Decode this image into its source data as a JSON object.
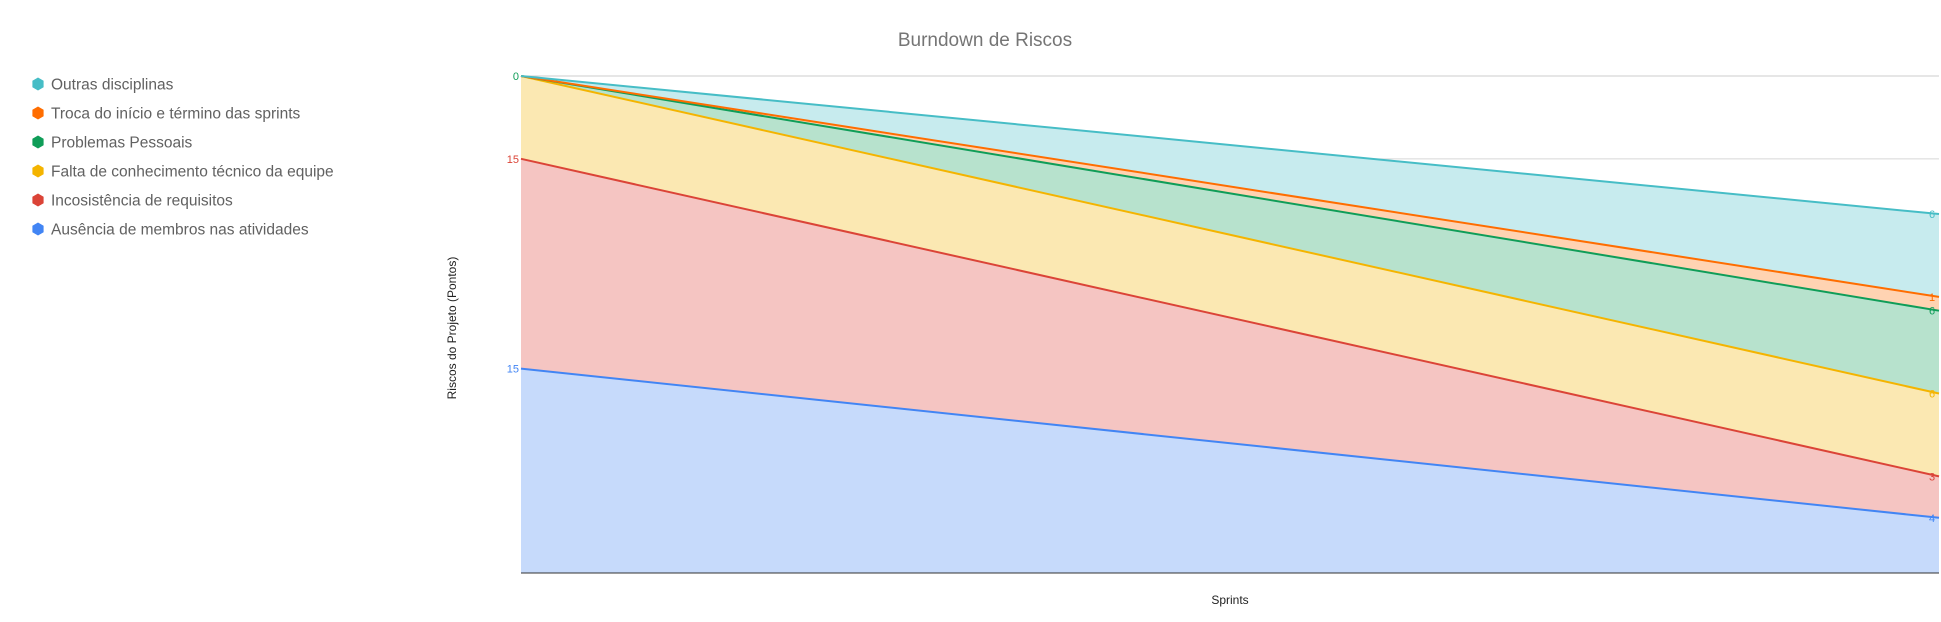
{
  "chart_data": {
    "type": "area",
    "stacked": true,
    "title": "Burndown de Riscos",
    "xlabel": "Sprints",
    "ylabel": "Riscos do Projeto (Pontos)",
    "x": [
      "",
      ""
    ],
    "ylim": [
      0,
      90
    ],
    "grid": true,
    "legend": "left",
    "series": [
      {
        "name": "Ausência de membros nas atividades",
        "color": "#4285f4",
        "fill": "#c6dafb",
        "values": [
          37,
          10
        ],
        "labels": [
          "15",
          "4"
        ]
      },
      {
        "name": "Incosistência de requisitos",
        "color": "#db4437",
        "fill": "#f5c5c2",
        "values": [
          38,
          7.5
        ],
        "labels": [
          "15",
          "3"
        ]
      },
      {
        "name": "Falta de conhecimento técnico da equipe",
        "color": "#f4b400",
        "fill": "#fbe8b2",
        "values": [
          15,
          15
        ],
        "labels": [
          "",
          "6"
        ]
      },
      {
        "name": "Problemas Pessoais",
        "color": "#0f9d58",
        "fill": "#b7e2cd",
        "values": [
          0,
          15
        ],
        "labels": [
          "0",
          "6"
        ]
      },
      {
        "name": "Troca do início e término das sprints",
        "color": "#ff6d00",
        "fill": "#ffd3b2",
        "values": [
          0,
          2.5
        ],
        "labels": [
          "",
          "1"
        ]
      },
      {
        "name": "Outras disciplinas",
        "color": "#46bdc6",
        "fill": "#c7ebee",
        "values": [
          0,
          15
        ],
        "labels": [
          "",
          "6"
        ]
      }
    ]
  }
}
